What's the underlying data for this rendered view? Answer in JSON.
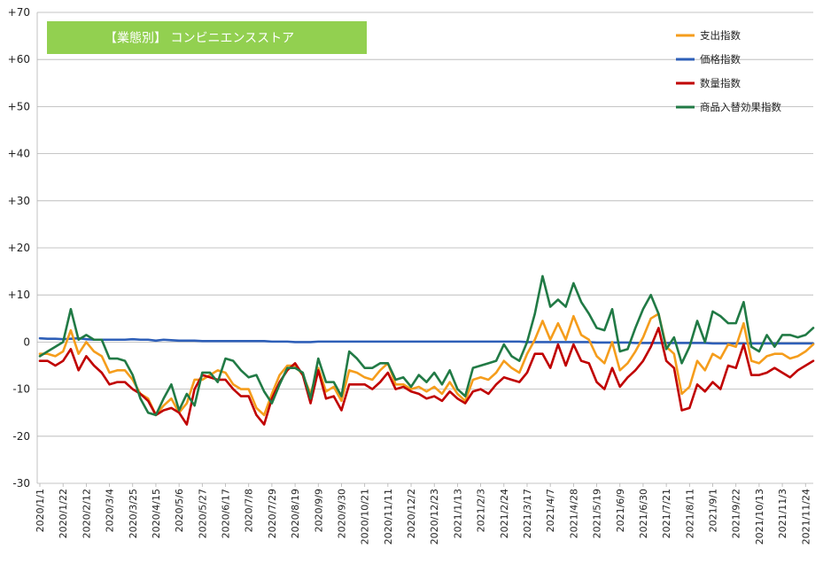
{
  "chart_data": {
    "type": "line",
    "title": "【業態別】 コンビニエンスストア",
    "xlabel": "",
    "ylabel": "",
    "ylim": [
      -30,
      70
    ],
    "yticks": [
      -30,
      -20,
      -10,
      0,
      10,
      20,
      30,
      40,
      50,
      60,
      70
    ],
    "ytick_labels": [
      "-30",
      "-20",
      "-10",
      "0",
      "+10",
      "+20",
      "+30",
      "+40",
      "+50",
      "+60",
      "+70"
    ],
    "grid": true,
    "legend_position": "top-right",
    "title_box_color": "#92d050",
    "x_tick_labels": [
      "2020/1/1",
      "2020/1/22",
      "2020/2/12",
      "2020/3/4",
      "2020/3/25",
      "2020/4/15",
      "2020/5/6",
      "2020/5/27",
      "2020/6/17",
      "2020/7/8",
      "2020/7/29",
      "2020/8/19",
      "2020/9/9",
      "2020/9/30",
      "2020/10/21",
      "2020/11/11",
      "2020/12/2",
      "2020/12/23",
      "2021/1/13",
      "2021/2/3",
      "2021/2/24",
      "2021/3/17",
      "2021/4/7",
      "2021/4/28",
      "2021/5/19",
      "2021/6/9",
      "2021/6/30",
      "2021/7/21",
      "2021/8/11",
      "2021/9/1",
      "2021/9/22",
      "2021/10/13",
      "2021/11/3",
      "2021/11/24"
    ],
    "series": [
      {
        "name": "支出指数",
        "color": "#f59d1c",
        "values": [
          -2.5,
          -2.5,
          -3,
          -2,
          2.5,
          -2.5,
          0,
          -2,
          -3,
          -6.5,
          -6,
          -6,
          -8,
          -11,
          -12,
          -15.5,
          -13.5,
          -12,
          -15,
          -13,
          -8,
          -8,
          -7,
          -6,
          -6.5,
          -9,
          -10,
          -10,
          -14,
          -15.5,
          -11,
          -7,
          -5,
          -5,
          -7,
          -11,
          -5.5,
          -10.5,
          -9.5,
          -12.5,
          -6,
          -6.5,
          -7.5,
          -8,
          -6,
          -4.5,
          -9,
          -9,
          -10,
          -9.5,
          -10.5,
          -9.5,
          -11,
          -8.5,
          -11,
          -12.5,
          -8,
          -7.5,
          -8,
          -6.5,
          -4,
          -5.5,
          -6.5,
          -2.5,
          0.5,
          4.5,
          0.5,
          4,
          0.5,
          5.5,
          1.5,
          0.5,
          -3,
          -4.5,
          0,
          -6,
          -4.5,
          -2,
          1,
          5,
          6,
          -1,
          -2.5,
          -11,
          -9.5,
          -4,
          -6,
          -2.5,
          -3.5,
          -0.5,
          -1,
          4,
          -4,
          -4.5,
          -3,
          -2.5,
          -2.5,
          -3.5,
          -3,
          -2,
          -0.5
        ]
      },
      {
        "name": "価格指数",
        "color": "#2e5fb8",
        "values": [
          0.8,
          0.7,
          0.7,
          0.6,
          0.7,
          0.8,
          0.6,
          0.5,
          0.5,
          0.5,
          0.5,
          0.5,
          0.6,
          0.5,
          0.5,
          0.3,
          0.5,
          0.4,
          0.3,
          0.3,
          0.3,
          0.2,
          0.2,
          0.2,
          0.2,
          0.2,
          0.2,
          0.2,
          0.2,
          0.2,
          0.1,
          0.1,
          0.1,
          0,
          0,
          0,
          0.1,
          0.1,
          0.1,
          0.1,
          0.1,
          0.1,
          0.1,
          0.1,
          0.1,
          0.1,
          0.1,
          0.1,
          0.1,
          0.1,
          0.1,
          0.1,
          0.1,
          0.1,
          0.1,
          0.1,
          0.1,
          0.1,
          0.1,
          0.1,
          0.1,
          0.1,
          0.1,
          0,
          0,
          0,
          0,
          0,
          0,
          0,
          0,
          0,
          -0.1,
          -0.1,
          -0.1,
          -0.1,
          -0.1,
          -0.2,
          -0.2,
          -0.2,
          -0.2,
          -0.2,
          -0.2,
          -0.2,
          -0.2,
          -0.2,
          -0.2,
          -0.3,
          -0.3,
          -0.3,
          -0.3,
          -0.3,
          -0.3,
          -0.3,
          -0.3,
          -0.3,
          -0.3,
          -0.3,
          -0.3,
          -0.3,
          -0.3
        ]
      },
      {
        "name": "数量指数",
        "color": "#c00000",
        "values": [
          -4,
          -4,
          -5,
          -4,
          -1.5,
          -6,
          -3,
          -5,
          -6.5,
          -9,
          -8.5,
          -8.5,
          -10,
          -11,
          -12.5,
          -15.5,
          -14.5,
          -14,
          -15,
          -17.5,
          -10,
          -7,
          -7.5,
          -8,
          -8,
          -10,
          -11.5,
          -11.5,
          -15.5,
          -17.5,
          -12,
          -8.5,
          -6,
          -4.5,
          -7,
          -13,
          -6,
          -12,
          -11.5,
          -14.5,
          -9,
          -9,
          -9,
          -10,
          -8.5,
          -6.5,
          -10,
          -9.5,
          -10.5,
          -11,
          -12,
          -11.5,
          -12.5,
          -10.5,
          -12,
          -13,
          -10.5,
          -10,
          -11,
          -9,
          -7.5,
          -8,
          -8.5,
          -6.5,
          -2.5,
          -2.5,
          -5.5,
          -0.5,
          -5,
          -0.5,
          -4,
          -4.5,
          -8.5,
          -10,
          -5.5,
          -9.5,
          -7.5,
          -6,
          -4,
          -1,
          3,
          -4,
          -5.5,
          -14.5,
          -14,
          -9,
          -10.5,
          -8.5,
          -10,
          -5,
          -5.5,
          -0.5,
          -7,
          -7,
          -6.5,
          -5.5,
          -6.5,
          -7.5,
          -6,
          -5,
          -4
        ]
      },
      {
        "name": "商品入替効果指数",
        "color": "#217a45",
        "values": [
          -3,
          -2,
          -1,
          0,
          7,
          0.5,
          1.5,
          0.5,
          0.5,
          -3.5,
          -3.5,
          -4,
          -7,
          -12,
          -15,
          -15.5,
          -12,
          -9,
          -14.5,
          -11,
          -13.5,
          -6.5,
          -6.5,
          -8.5,
          -3.5,
          -4,
          -6,
          -7.5,
          -7,
          -10.5,
          -13,
          -9,
          -5.5,
          -5.5,
          -6.5,
          -12,
          -3.5,
          -8.5,
          -8.5,
          -11.5,
          -2,
          -3.5,
          -5.5,
          -5.5,
          -4.5,
          -4.5,
          -8,
          -7.5,
          -9.5,
          -7,
          -8.5,
          -6.5,
          -9,
          -6,
          -10,
          -11.5,
          -5.5,
          -5,
          -4.5,
          -4,
          -0.5,
          -3,
          -4,
          0,
          6,
          14,
          7.5,
          9,
          7.5,
          12.5,
          8.5,
          6,
          3,
          2.5,
          7,
          -2,
          -1.5,
          3,
          7,
          10,
          6,
          -1.5,
          1,
          -4.5,
          -1,
          4.5,
          0,
          6.5,
          5.5,
          4,
          4,
          8.5,
          -1,
          -2,
          1.5,
          -1,
          1.5,
          1.5,
          1,
          1.5,
          3
        ]
      }
    ]
  }
}
